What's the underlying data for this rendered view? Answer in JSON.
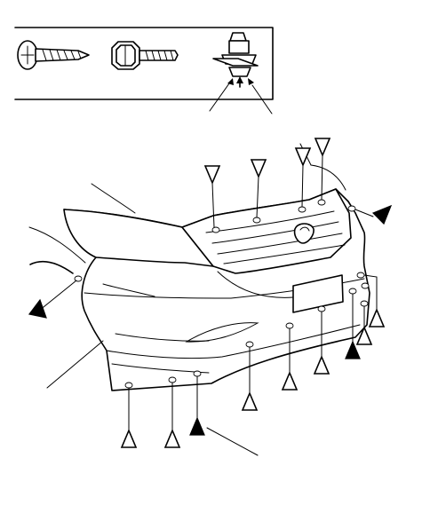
{
  "diagram": {
    "legend": {
      "items": [
        {
          "icon": "screw-icon",
          "legend_marker": "outline-triangle"
        },
        {
          "icon": "flange-bolt-icon",
          "legend_marker": "none"
        },
        {
          "icon": "clip-icon",
          "legend_marker": "filled-triangle"
        }
      ]
    },
    "parts": [
      {
        "icon": "front-bumper-icon"
      },
      {
        "icon": "front-grille-icon"
      },
      {
        "icon": "hood-icon"
      },
      {
        "icon": "headlight-icon"
      },
      {
        "icon": "fender-icon"
      }
    ],
    "fastener_types": {
      "outline-triangle": "screw",
      "filled-triangle": "clip"
    }
  }
}
